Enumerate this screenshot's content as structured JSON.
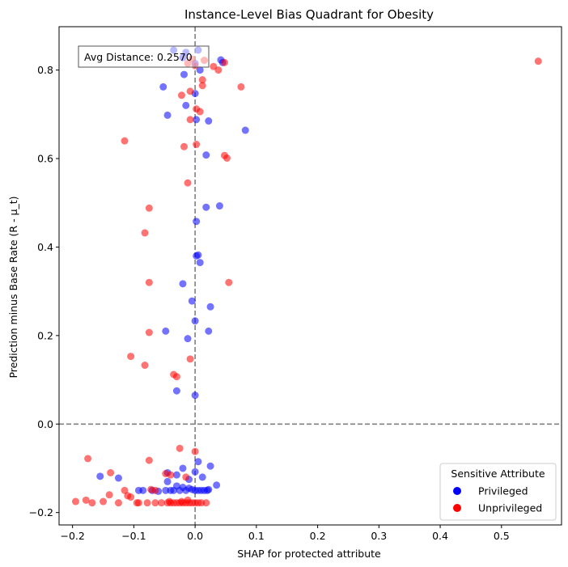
{
  "chart_data": {
    "type": "scatter",
    "title": "Instance-Level Bias Quadrant for Obesity",
    "xlabel": "SHAP for protected attribute",
    "ylabel": "Prediction minus Base Rate (R - μ_t)",
    "xlim": [
      -0.222,
      0.598
    ],
    "ylim": [
      -0.228,
      0.898
    ],
    "xticks": [
      -0.2,
      -0.1,
      0.0,
      0.1,
      0.2,
      0.3,
      0.4,
      0.5
    ],
    "xtick_labels": [
      "−0.2",
      "−0.1",
      "0.0",
      "0.1",
      "0.2",
      "0.3",
      "0.4",
      "0.5"
    ],
    "yticks": [
      -0.2,
      0.0,
      0.2,
      0.4,
      0.6,
      0.8
    ],
    "ytick_labels": [
      "−0.2",
      "0.0",
      "0.2",
      "0.4",
      "0.6",
      "0.8"
    ],
    "reference_lines": {
      "x": 0.0,
      "y": 0.0
    },
    "annotation": "Avg Distance: 0.2570",
    "legend": {
      "title": "Sensitive Attribute",
      "placement": "lower-right",
      "entries": [
        "Privileged",
        "Unprivileged"
      ]
    },
    "series": [
      {
        "name": "Privileged",
        "color": "#0000ff",
        "alpha": 0.55,
        "points": [
          [
            -0.035,
            0.845
          ],
          [
            -0.015,
            0.84
          ],
          [
            0.005,
            0.845
          ],
          [
            -0.02,
            0.828
          ],
          [
            0.042,
            0.823
          ],
          [
            0.045,
            0.817
          ],
          [
            -0.018,
            0.79
          ],
          [
            0.008,
            0.8
          ],
          [
            0.0,
            0.815
          ],
          [
            -0.052,
            0.762
          ],
          [
            0.0,
            0.747
          ],
          [
            -0.015,
            0.72
          ],
          [
            -0.045,
            0.698
          ],
          [
            0.002,
            0.688
          ],
          [
            0.022,
            0.685
          ],
          [
            0.082,
            0.664
          ],
          [
            0.018,
            0.608
          ],
          [
            0.018,
            0.49
          ],
          [
            0.04,
            0.493
          ],
          [
            0.002,
            0.458
          ],
          [
            0.002,
            0.38
          ],
          [
            0.005,
            0.382
          ],
          [
            0.008,
            0.365
          ],
          [
            -0.02,
            0.317
          ],
          [
            -0.005,
            0.278
          ],
          [
            0.025,
            0.265
          ],
          [
            0.0,
            0.233
          ],
          [
            -0.048,
            0.21
          ],
          [
            0.022,
            0.21
          ],
          [
            -0.012,
            0.193
          ],
          [
            -0.03,
            0.075
          ],
          [
            0.0,
            0.065
          ],
          [
            0.005,
            -0.085
          ],
          [
            0.025,
            -0.095
          ],
          [
            -0.02,
            -0.1
          ],
          [
            -0.045,
            -0.11
          ],
          [
            0.0,
            -0.108
          ],
          [
            -0.03,
            -0.115
          ],
          [
            0.012,
            -0.12
          ],
          [
            -0.155,
            -0.118
          ],
          [
            -0.125,
            -0.122
          ],
          [
            -0.045,
            -0.13
          ],
          [
            -0.01,
            -0.125
          ],
          [
            0.035,
            -0.138
          ],
          [
            -0.03,
            -0.14
          ],
          [
            -0.02,
            -0.143
          ],
          [
            -0.01,
            -0.145
          ],
          [
            -0.005,
            -0.148
          ],
          [
            0.0,
            -0.15
          ],
          [
            0.005,
            -0.15
          ],
          [
            0.01,
            -0.15
          ],
          [
            0.015,
            -0.15
          ],
          [
            -0.015,
            -0.15
          ],
          [
            -0.025,
            -0.15
          ],
          [
            -0.035,
            -0.15
          ],
          [
            -0.04,
            -0.15
          ],
          [
            -0.048,
            -0.15
          ],
          [
            -0.07,
            -0.15
          ],
          [
            -0.085,
            -0.15
          ],
          [
            -0.092,
            -0.15
          ],
          [
            0.02,
            -0.15
          ],
          [
            0.022,
            -0.148
          ],
          [
            -0.06,
            -0.152
          ]
        ]
      },
      {
        "name": "Unprivileged",
        "color": "#ff0000",
        "alpha": 0.55,
        "points": [
          [
            0.56,
            0.82
          ],
          [
            -0.005,
            0.825
          ],
          [
            0.015,
            0.822
          ],
          [
            0.03,
            0.808
          ],
          [
            0.038,
            0.8
          ],
          [
            0.048,
            0.817
          ],
          [
            -0.012,
            0.815
          ],
          [
            0.0,
            0.81
          ],
          [
            0.075,
            0.762
          ],
          [
            -0.008,
            0.752
          ],
          [
            0.012,
            0.778
          ],
          [
            0.012,
            0.765
          ],
          [
            0.002,
            0.712
          ],
          [
            0.008,
            0.706
          ],
          [
            -0.022,
            0.743
          ],
          [
            -0.008,
            0.688
          ],
          [
            -0.115,
            0.64
          ],
          [
            -0.018,
            0.627
          ],
          [
            0.002,
            0.632
          ],
          [
            0.048,
            0.607
          ],
          [
            0.052,
            0.601
          ],
          [
            -0.012,
            0.545
          ],
          [
            -0.075,
            0.488
          ],
          [
            -0.082,
            0.432
          ],
          [
            -0.075,
            0.32
          ],
          [
            0.055,
            0.32
          ],
          [
            -0.075,
            0.207
          ],
          [
            -0.008,
            0.147
          ],
          [
            -0.105,
            0.153
          ],
          [
            -0.082,
            0.133
          ],
          [
            -0.035,
            0.112
          ],
          [
            -0.03,
            0.107
          ],
          [
            -0.175,
            -0.078
          ],
          [
            -0.075,
            -0.082
          ],
          [
            -0.025,
            -0.055
          ],
          [
            0.0,
            -0.062
          ],
          [
            -0.138,
            -0.11
          ],
          [
            -0.048,
            -0.112
          ],
          [
            -0.04,
            -0.115
          ],
          [
            -0.015,
            -0.12
          ],
          [
            -0.065,
            -0.15
          ],
          [
            -0.072,
            -0.148
          ],
          [
            -0.115,
            -0.15
          ],
          [
            -0.14,
            -0.16
          ],
          [
            -0.11,
            -0.162
          ],
          [
            -0.105,
            -0.165
          ],
          [
            -0.178,
            -0.172
          ],
          [
            -0.195,
            -0.175
          ],
          [
            -0.168,
            -0.178
          ],
          [
            -0.15,
            -0.175
          ],
          [
            -0.125,
            -0.178
          ],
          [
            -0.095,
            -0.178
          ],
          [
            -0.092,
            -0.178
          ],
          [
            -0.078,
            -0.178
          ],
          [
            -0.065,
            -0.178
          ],
          [
            -0.055,
            -0.178
          ],
          [
            -0.045,
            -0.178
          ],
          [
            -0.04,
            -0.178
          ],
          [
            -0.035,
            -0.178
          ],
          [
            -0.03,
            -0.178
          ],
          [
            -0.025,
            -0.178
          ],
          [
            -0.02,
            -0.178
          ],
          [
            -0.015,
            -0.178
          ],
          [
            -0.01,
            -0.178
          ],
          [
            -0.005,
            -0.178
          ],
          [
            0.0,
            -0.178
          ],
          [
            0.005,
            -0.178
          ],
          [
            0.01,
            -0.178
          ],
          [
            0.018,
            -0.178
          ],
          [
            -0.012,
            -0.172
          ],
          [
            -0.022,
            -0.175
          ],
          [
            -0.042,
            -0.175
          ]
        ]
      }
    ]
  }
}
